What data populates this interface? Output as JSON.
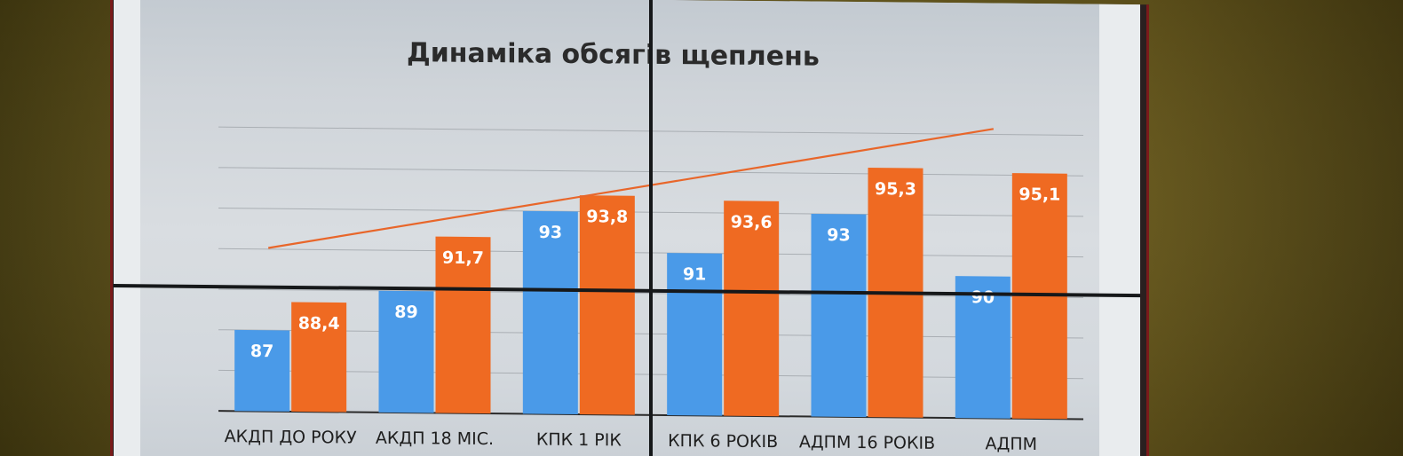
{
  "chart_data": {
    "type": "bar",
    "title": "Динаміка обсягів щеплень",
    "categories": [
      "АКДП ДО РОКУ",
      "АКДП 18 МІС.",
      "КПК 1 РІК",
      "КПК 6 РОКІВ",
      "АДПМ 16 РОКІВ",
      "АДПМ"
    ],
    "series": [
      {
        "values": [
          87,
          89,
          93,
          91,
          93,
          90
        ],
        "labels": [
          "87",
          "89",
          "93",
          "91",
          "93",
          "90"
        ],
        "color": "#4a9ae8"
      },
      {
        "values": [
          88.4,
          91.7,
          93.8,
          93.6,
          95.3,
          95.1
        ],
        "labels": [
          "88,4",
          "91,7",
          "93,8",
          "93,6",
          "95,3",
          "95,1"
        ],
        "color": "#ef6a22"
      }
    ],
    "trendline": {
      "series": 1,
      "color": "#e8662a"
    },
    "ylim": [
      83,
      97
    ],
    "grid": true,
    "legend": "none"
  },
  "colors": {
    "wall": "#6a5a1b",
    "screen_bezel": "#7a1a1a",
    "slide_background": "#d3d8dd",
    "gridline": "#a9aeb3",
    "baseline": "#2a2a2a"
  }
}
